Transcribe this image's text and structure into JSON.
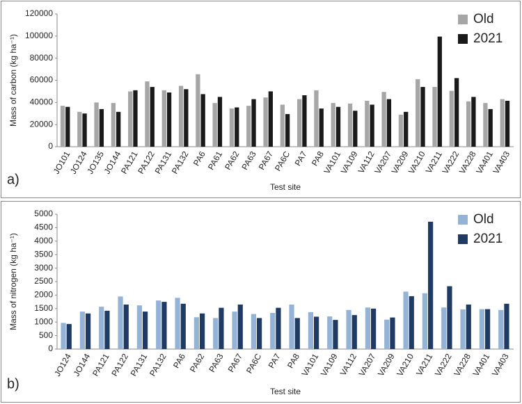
{
  "chart_data": [
    {
      "type": "bar",
      "panel_label": "a)",
      "y_label": "Mass of carbon (kg ha⁻¹)",
      "x_label": "Test site",
      "categories": [
        "JO101",
        "JO124",
        "JO135",
        "JO144",
        "PA121",
        "PA122",
        "PA131",
        "PA132",
        "PA6",
        "PA61",
        "PA62",
        "PA63",
        "PA67",
        "PA6C",
        "PA7",
        "PA8",
        "VA101",
        "VA109",
        "VA112",
        "VA207",
        "VA209",
        "VA210",
        "VA211",
        "VA222",
        "VA228",
        "VA401",
        "VA403"
      ],
      "series": [
        {
          "name": "Old",
          "color": "#a6a6a6",
          "values": [
            37000,
            31500,
            40000,
            39500,
            50000,
            59000,
            51000,
            55000,
            65500,
            39500,
            34500,
            37000,
            44500,
            38000,
            43000,
            51000,
            39500,
            39000,
            41500,
            49500,
            29000,
            61000,
            54000,
            50500,
            41000,
            39500,
            43000
          ]
        },
        {
          "name": "2021",
          "color": "#1a1a1a",
          "values": [
            36000,
            30000,
            34000,
            31500,
            51000,
            54000,
            49000,
            52000,
            47500,
            45000,
            35500,
            43000,
            50000,
            29500,
            46500,
            34500,
            36000,
            32500,
            38000,
            43000,
            31500,
            54000,
            99500,
            62000,
            45000,
            34000,
            41500
          ]
        }
      ],
      "ylim": [
        0,
        120000
      ],
      "yticks": [
        0,
        20000,
        40000,
        60000,
        80000,
        100000,
        120000
      ],
      "legend": "top-right"
    },
    {
      "type": "bar",
      "panel_label": "b)",
      "y_label": "Mass of nitrogen (kg ha⁻¹)",
      "x_label": "Test site",
      "categories": [
        "JO124",
        "JO144",
        "PA121",
        "PA122",
        "PA131",
        "PA132",
        "PA6",
        "PA62",
        "PA63",
        "PA67",
        "PA6C",
        "PA7",
        "PA8",
        "VA101",
        "VA109",
        "VA112",
        "VA207",
        "VA209",
        "VA210",
        "VA211",
        "VA222",
        "VA228",
        "VA401",
        "VA403"
      ],
      "series": [
        {
          "name": "Old",
          "color": "#95b3d7",
          "values": [
            970,
            1390,
            1570,
            1950,
            1620,
            1800,
            1900,
            1180,
            1150,
            1390,
            1300,
            1340,
            1650,
            1370,
            1210,
            1450,
            1540,
            1090,
            2130,
            2070,
            1540,
            1470,
            1480,
            1450
          ]
        },
        {
          "name": "2021",
          "color": "#1f3b63",
          "values": [
            930,
            1320,
            1420,
            1650,
            1390,
            1750,
            1680,
            1320,
            1530,
            1650,
            1150,
            1530,
            1150,
            1200,
            1080,
            1260,
            1500,
            1170,
            1960,
            4720,
            2330,
            1650,
            1480,
            1680
          ]
        }
      ],
      "ylim": [
        0,
        5000
      ],
      "yticks": [
        0,
        500,
        1000,
        1500,
        2000,
        2500,
        3000,
        3500,
        4000,
        4500,
        5000
      ],
      "legend": "top-right"
    }
  ]
}
